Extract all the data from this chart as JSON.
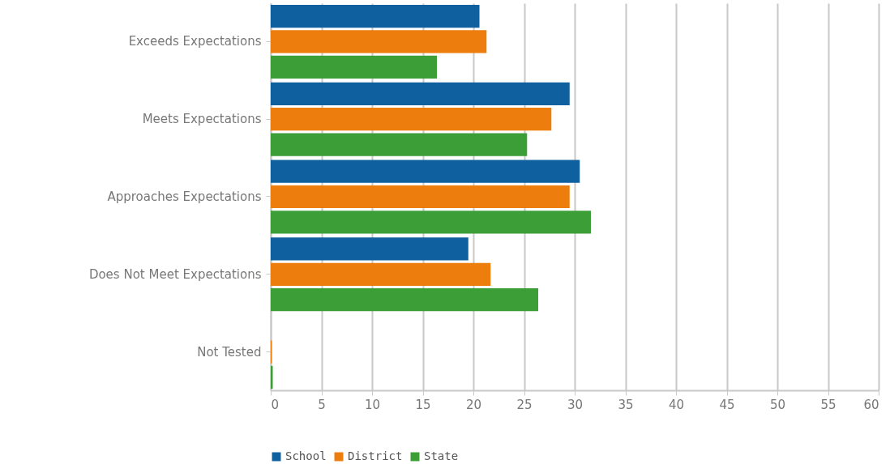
{
  "chart_data": {
    "type": "bar",
    "orientation": "horizontal",
    "categories": [
      "Exceeds Expectations",
      "Meets Expectations",
      "Approaches Expectations",
      "Does Not Meet Expectations",
      "Not Tested"
    ],
    "series": [
      {
        "name": "School",
        "color": "#0f609e",
        "values": [
          20.6,
          29.5,
          30.5,
          19.5,
          0
        ]
      },
      {
        "name": "District",
        "color": "#ed7d0c",
        "values": [
          21.3,
          27.7,
          29.5,
          21.7,
          0.1
        ]
      },
      {
        "name": "State",
        "color": "#3c9e37",
        "values": [
          16.4,
          25.3,
          31.6,
          26.4,
          0.2
        ]
      }
    ],
    "xlim": [
      0,
      60
    ],
    "xticks": [
      0,
      5,
      10,
      15,
      20,
      25,
      30,
      35,
      40,
      45,
      50,
      55,
      60
    ],
    "grid": "x",
    "legend": "bottom"
  }
}
